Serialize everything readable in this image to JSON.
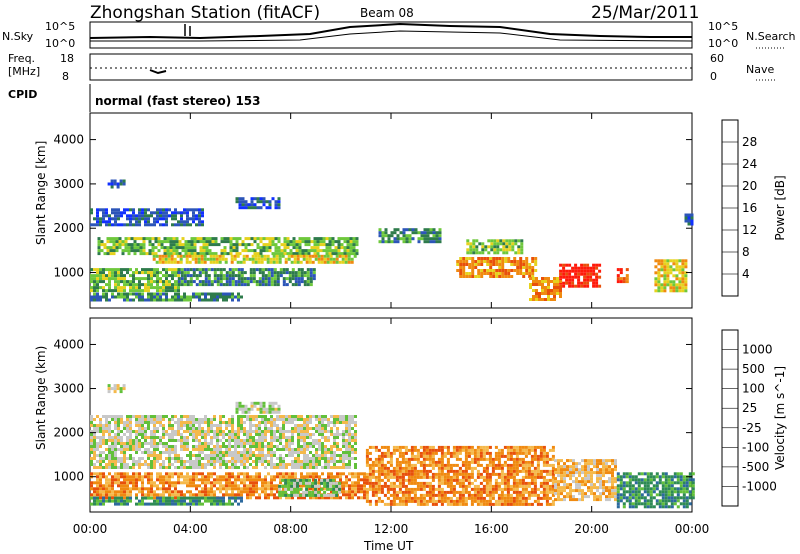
{
  "header": {
    "station": "Zhongshan Station (fitACF)",
    "beam": "Beam 08",
    "date": "25/Mar/2011"
  },
  "top_panels": {
    "nsky_label": "N.Sky",
    "nsky_ticks": [
      "10^5",
      "10^0"
    ],
    "nsearch_label": "N.Search",
    "nsearch_ticks": [
      "10^5",
      "10^0"
    ],
    "freq_label": "Freq.",
    "freq_unit": "[MHz]",
    "freq_ticks": [
      "18",
      "8"
    ],
    "nave_label": "Nave",
    "nave_ticks": [
      "60",
      "0"
    ],
    "cpid_label": "CPID",
    "cpid_text": "normal (fast stereo) 153"
  },
  "chart_data": [
    {
      "type": "heatmap",
      "name": "power-panel",
      "ylabel": "Slant Range [km]",
      "ylim": [
        200,
        4600
      ],
      "yticks": [
        "1000",
        "2000",
        "3000",
        "4000"
      ],
      "xticks": [
        "00:00",
        "04:00",
        "08:00",
        "12:00",
        "16:00",
        "20:00",
        "00:00"
      ],
      "colorbar": {
        "label": "Power [dB]",
        "ticks": [
          "4",
          "8",
          "12",
          "16",
          "20",
          "24",
          "28"
        ],
        "colors": [
          "#1030ff",
          "#2c55b8",
          "#2e7b4b",
          "#6ec83c",
          "#e6d21e",
          "#f08a10",
          "#e8500a",
          "#ff1a0a"
        ]
      },
      "regions": [
        {
          "t0": 0.7,
          "t1": 1.3,
          "r0": 2950,
          "r1": 3100,
          "level": 1
        },
        {
          "t0": 5.8,
          "t1": 7.5,
          "r0": 2450,
          "r1": 2700,
          "level": 1
        },
        {
          "t0": 0.0,
          "t1": 4.5,
          "r0": 2050,
          "r1": 2450,
          "level": 1
        },
        {
          "t0": 0.3,
          "t1": 10.6,
          "r0": 1400,
          "r1": 1800,
          "level": 3
        },
        {
          "t0": 2.5,
          "t1": 10.6,
          "r0": 1200,
          "r1": 1400,
          "level": 4
        },
        {
          "t0": 0.0,
          "t1": 3.5,
          "r0": 600,
          "r1": 1100,
          "level": 3
        },
        {
          "t0": 3.5,
          "t1": 9.0,
          "r0": 700,
          "r1": 1100,
          "level": 2
        },
        {
          "t0": 0.0,
          "t1": 6.0,
          "r0": 350,
          "r1": 550,
          "level": 2
        },
        {
          "t0": 14.6,
          "t1": 17.8,
          "r0": 900,
          "r1": 1350,
          "level": 5
        },
        {
          "t0": 15.0,
          "t1": 17.2,
          "r0": 1450,
          "r1": 1750,
          "level": 3
        },
        {
          "t0": 18.7,
          "t1": 20.3,
          "r0": 700,
          "r1": 1200,
          "level": 7
        },
        {
          "t0": 17.5,
          "t1": 18.7,
          "r0": 400,
          "r1": 900,
          "level": 5
        },
        {
          "t0": 21.0,
          "t1": 21.4,
          "r0": 800,
          "r1": 1100,
          "level": 6
        },
        {
          "t0": 22.5,
          "t1": 23.7,
          "r0": 600,
          "r1": 1300,
          "level": 4
        },
        {
          "t0": 11.5,
          "t1": 14.0,
          "r0": 1700,
          "r1": 2000,
          "level": 2
        },
        {
          "t0": 23.7,
          "t1": 24.0,
          "r0": 2100,
          "r1": 2400,
          "level": 1
        }
      ]
    },
    {
      "type": "heatmap",
      "name": "velocity-panel",
      "ylabel": "Slant Range (km)",
      "ylim": [
        200,
        4600
      ],
      "yticks": [
        "1000",
        "2000",
        "3000",
        "4000"
      ],
      "xticks": [
        "00:00",
        "04:00",
        "08:00",
        "12:00",
        "16:00",
        "20:00",
        "00:00"
      ],
      "xlabel": "Time UT",
      "colorbar": {
        "label": "Velocity [m s^-1]",
        "ticks": [
          "1000",
          "500",
          "100",
          "25",
          "-25",
          "-100",
          "-500",
          "-1000"
        ],
        "colors": [
          "#1a3cc8",
          "#2d6a9e",
          "#2e8a55",
          "#62c03a",
          "#c8c8c8",
          "#f5b94b",
          "#f08a10",
          "#e8500a",
          "#ff1a0a"
        ]
      },
      "regions": [
        {
          "t0": 0.0,
          "t1": 10.6,
          "r0": 1200,
          "r1": 2400,
          "level": 4
        },
        {
          "t0": 0.0,
          "t1": 11.0,
          "r0": 500,
          "r1": 1100,
          "level": 6
        },
        {
          "t0": 0.0,
          "t1": 6.0,
          "r0": 350,
          "r1": 550,
          "level": 2
        },
        {
          "t0": 7.5,
          "t1": 10.0,
          "r0": 600,
          "r1": 950,
          "level": 3
        },
        {
          "t0": 11.0,
          "t1": 18.5,
          "r0": 400,
          "r1": 1700,
          "level": 6
        },
        {
          "t0": 18.5,
          "t1": 21.0,
          "r0": 500,
          "r1": 1400,
          "level": 5
        },
        {
          "t0": 21.0,
          "t1": 24.0,
          "r0": 300,
          "r1": 1100,
          "level": 2
        },
        {
          "t0": 0.7,
          "t1": 1.3,
          "r0": 2950,
          "r1": 3100,
          "level": 4
        },
        {
          "t0": 5.8,
          "t1": 7.5,
          "r0": 2450,
          "r1": 2700,
          "level": 4
        }
      ]
    }
  ]
}
